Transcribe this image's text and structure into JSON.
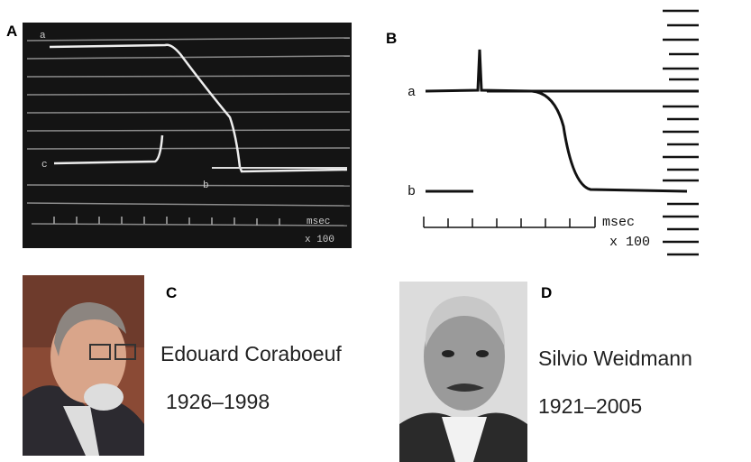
{
  "panel_a": {
    "label": "A",
    "trace_labels": [
      "a",
      "c",
      "b"
    ],
    "unit": "msec",
    "scale": "x 100"
  },
  "panel_b": {
    "label": "B",
    "trace_labels": [
      "a",
      "b"
    ],
    "unit": "msec",
    "scale": "x 100"
  },
  "panel_c": {
    "label": "C",
    "name": "Edouard Coraboeuf",
    "years": "1926–1998"
  },
  "panel_d": {
    "label": "D",
    "name": "Silvio Weidmann",
    "years": "1921–2005"
  }
}
